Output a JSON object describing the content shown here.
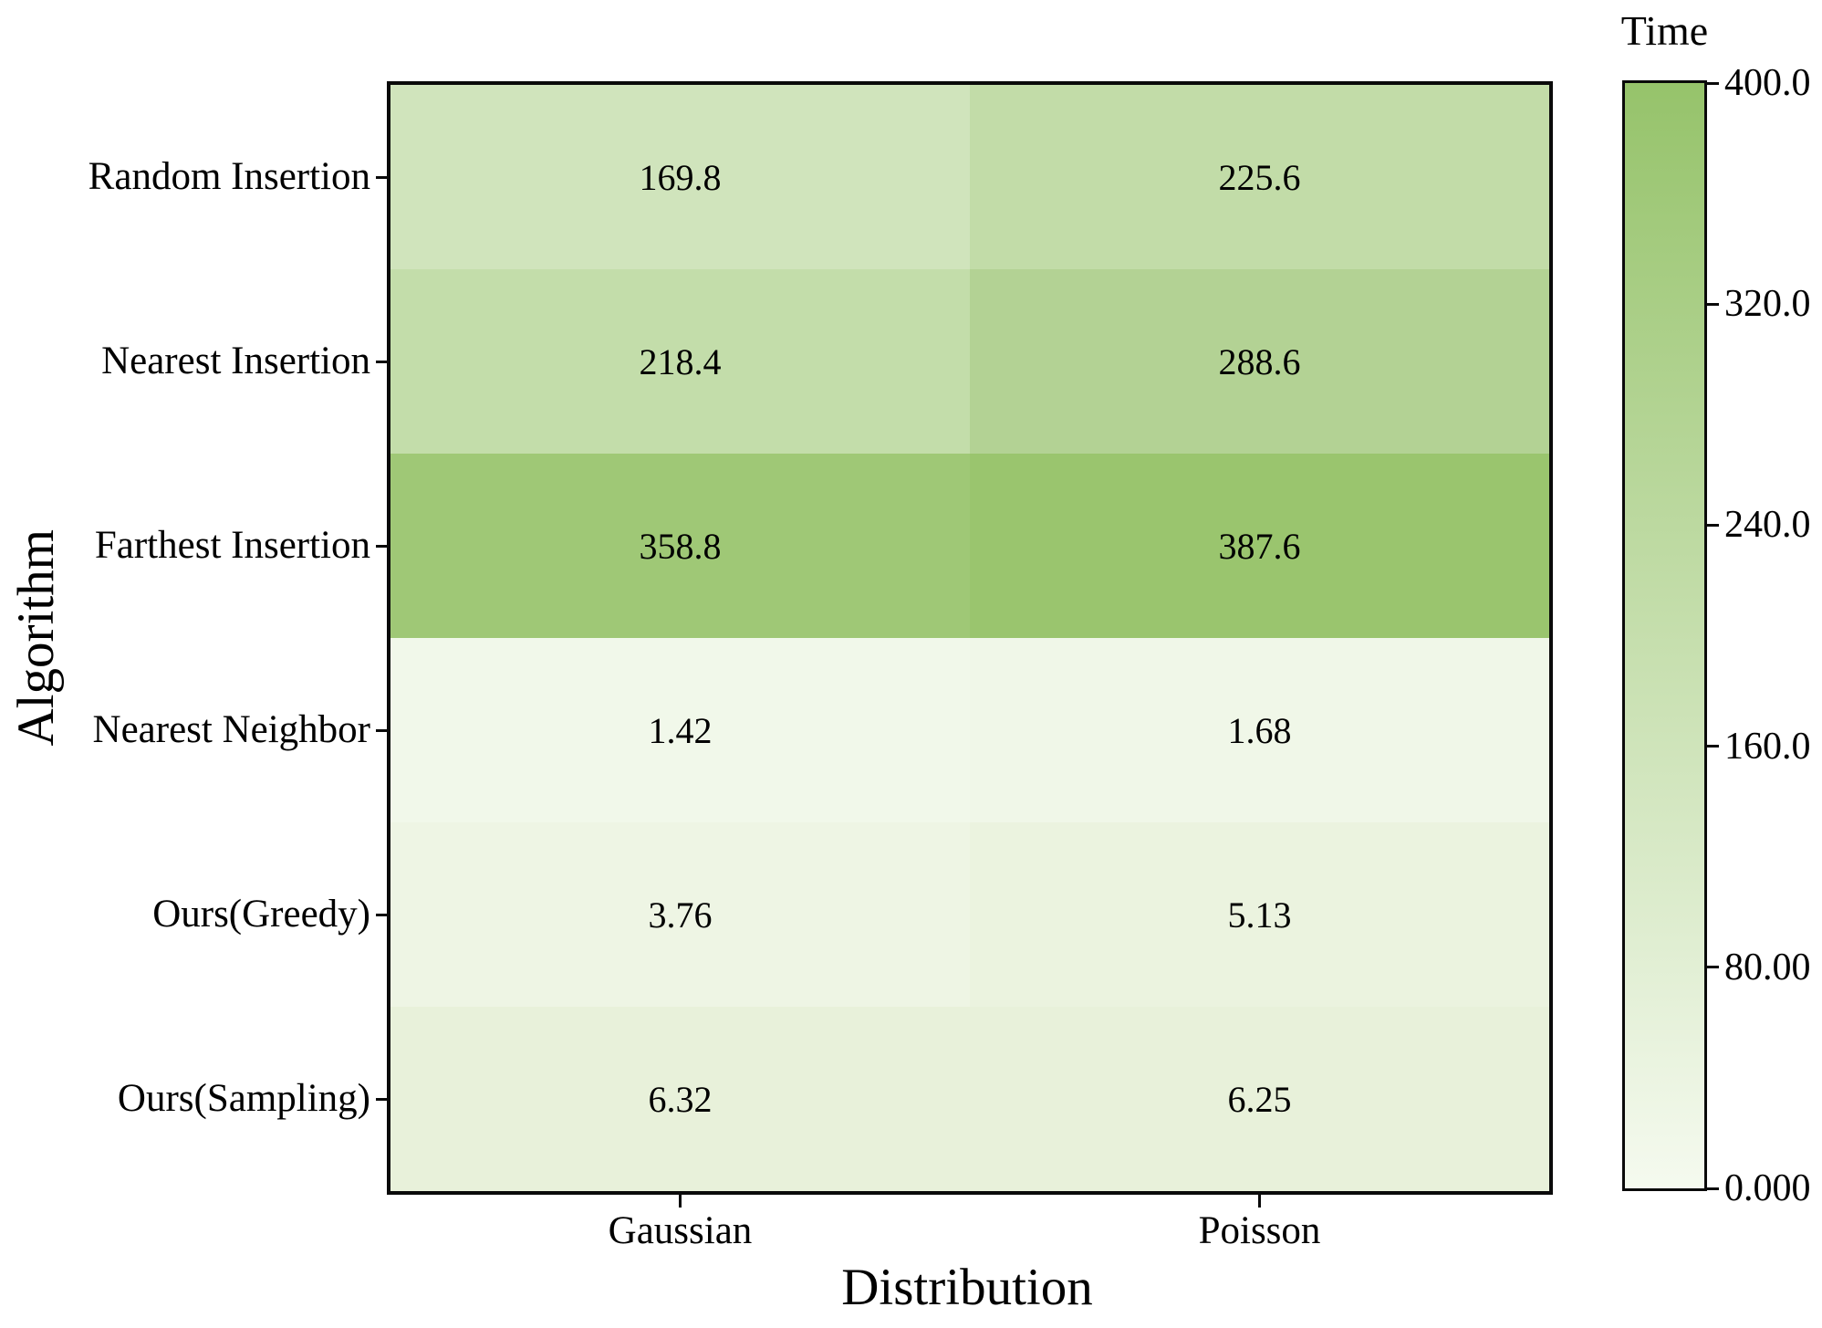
{
  "chart_data": {
    "type": "heatmap",
    "xlabel": "Distribution",
    "ylabel": "Algorithm",
    "categories_x": [
      "Gaussian",
      "Poisson"
    ],
    "categories_y": [
      "Random Insertion",
      "Nearest Insertion",
      "Farthest Insertion",
      "Nearest Neighbor",
      "Ours(Greedy)",
      "Ours(Sampling)"
    ],
    "values": [
      [
        169.8,
        225.6
      ],
      [
        218.4,
        288.6
      ],
      [
        358.8,
        387.6
      ],
      [
        1.42,
        1.68
      ],
      [
        3.76,
        5.13
      ],
      [
        6.32,
        6.25
      ]
    ],
    "value_labels": [
      [
        "169.8",
        "225.6"
      ],
      [
        "218.4",
        "288.6"
      ],
      [
        "358.8",
        "387.6"
      ],
      [
        "1.42",
        "1.68"
      ],
      [
        "3.76",
        "5.13"
      ],
      [
        "6.32",
        "6.25"
      ]
    ],
    "cell_colors": [
      [
        "#d0e4bc",
        "#c2dca8"
      ],
      [
        "#c3ddaa",
        "#b3d294"
      ],
      [
        "#9fc876",
        "#9ac56e"
      ],
      [
        "#f1f8ea",
        "#f0f7e8"
      ],
      [
        "#eef5e4",
        "#ebf3df"
      ],
      [
        "#e8f1da",
        "#e8f1da"
      ]
    ],
    "colorbar": {
      "title": "Time",
      "min": 0,
      "max": 400,
      "tick_values": [
        400,
        320,
        240,
        160,
        80,
        0
      ],
      "tick_labels": [
        "400.0",
        "320.0",
        "240.0",
        "160.0",
        "80.00",
        "0.000"
      ],
      "color_min": "#f5faef",
      "color_max": "#96c36b"
    },
    "layout": {
      "grid": "off",
      "legend": "colorbar-right",
      "value_annotations": "on"
    },
    "colors": {
      "background": "#ffffff",
      "axis_border": "#0a0a0a",
      "text": "#000000"
    }
  }
}
